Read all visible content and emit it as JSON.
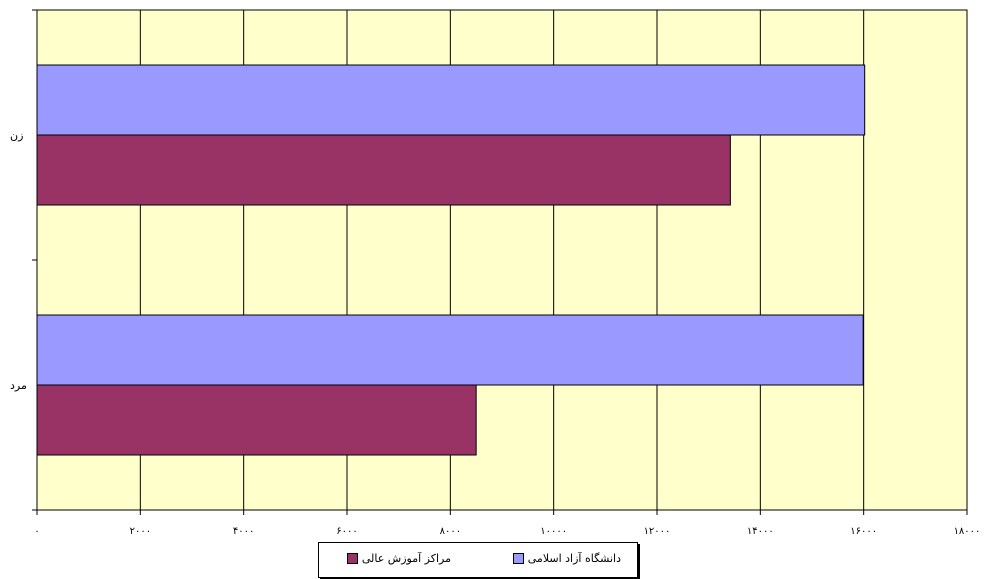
{
  "chart_data": {
    "type": "bar",
    "orientation": "horizontal",
    "categories": [
      "زن",
      "مرد"
    ],
    "series": [
      {
        "name": "دانشگاه آزاد اسلامی",
        "color": "#9999FF",
        "values": [
          16020,
          15990
        ]
      },
      {
        "name": "مراکز آموزش عالی",
        "color": "#993366",
        "values": [
          13420,
          8500
        ]
      }
    ],
    "xlim": [
      0,
      18000
    ],
    "x_ticks": [
      0,
      2000,
      4000,
      6000,
      8000,
      10000,
      12000,
      14000,
      16000,
      18000
    ],
    "x_tick_labels": [
      "۰",
      "۲۰۰۰",
      "۴۰۰۰",
      "۶۰۰۰",
      "۸۰۰۰",
      "۱۰۰۰۰",
      "۱۲۰۰۰",
      "۱۴۰۰۰",
      "۱۶۰۰۰",
      "۱۸۰۰۰"
    ],
    "plot_background": "#FFFFCC",
    "grid": true,
    "legend_position": "bottom"
  }
}
